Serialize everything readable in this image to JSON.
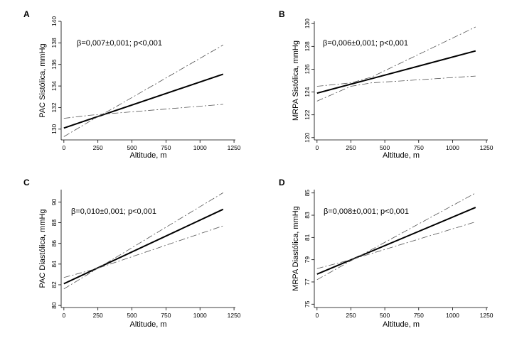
{
  "chart_data": [
    {
      "type": "line",
      "panel": "A",
      "annotation": "β=0,007±0,001; p<0,001",
      "xlabel": "Altitude, m",
      "ylabel": "PAC Sistólica, mmHg",
      "xlim": [
        -20,
        1260
      ],
      "ylim": [
        129,
        140
      ],
      "xticks": [
        0,
        250,
        500,
        750,
        1000,
        1250
      ],
      "yticks": [
        130,
        132,
        134,
        136,
        138,
        140
      ],
      "series": [
        {
          "role": "fit",
          "x": [
            0,
            1170
          ],
          "y": [
            130.1,
            135.1
          ]
        },
        {
          "role": "ci-upper",
          "x": [
            0,
            200,
            400,
            1170
          ],
          "y": [
            129.3,
            130.8,
            132.2,
            137.8
          ]
        },
        {
          "role": "ci-lower",
          "x": [
            0,
            200,
            400,
            1170
          ],
          "y": [
            131.0,
            131.3,
            131.5,
            132.3
          ]
        }
      ]
    },
    {
      "type": "line",
      "panel": "B",
      "annotation": "β=0,006±0,001; p<0,001",
      "xlabel": "Altitude, m",
      "ylabel": "MRPA Sistólica, mmHg",
      "xlim": [
        -20,
        1260
      ],
      "ylim": [
        119.8,
        130.2
      ],
      "xticks": [
        0,
        250,
        500,
        750,
        1000,
        1250
      ],
      "yticks": [
        120,
        122,
        124,
        126,
        128,
        130
      ],
      "series": [
        {
          "role": "fit",
          "x": [
            0,
            1170
          ],
          "y": [
            123.9,
            127.6
          ]
        },
        {
          "role": "ci-upper",
          "x": [
            0,
            250,
            400,
            1170
          ],
          "y": [
            124.5,
            124.8,
            125.3,
            129.7
          ]
        },
        {
          "role": "ci-lower",
          "x": [
            0,
            250,
            400,
            1170
          ],
          "y": [
            123.2,
            124.5,
            124.8,
            125.4
          ]
        }
      ]
    },
    {
      "type": "line",
      "panel": "C",
      "annotation": "β=0,010±0,001; p<0,001",
      "xlabel": "Altitude, m",
      "ylabel": "PAC Diastólica, mmHg",
      "xlim": [
        -20,
        1260
      ],
      "ylim": [
        79.8,
        91.2
      ],
      "xticks": [
        0,
        250,
        500,
        750,
        1000,
        1250
      ],
      "yticks": [
        80,
        82,
        84,
        86,
        88,
        90
      ],
      "series": [
        {
          "role": "fit",
          "x": [
            0,
            1170
          ],
          "y": [
            82.1,
            89.3
          ]
        },
        {
          "role": "ci-upper",
          "x": [
            0,
            250,
            1170
          ],
          "y": [
            81.6,
            83.6,
            90.9
          ]
        },
        {
          "role": "ci-lower",
          "x": [
            0,
            250,
            1170
          ],
          "y": [
            82.7,
            83.6,
            87.7
          ]
        }
      ]
    },
    {
      "type": "line",
      "panel": "D",
      "annotation": "β=0,008±0,001; p<0,001",
      "xlabel": "Altitude, m",
      "ylabel": "MRPA Diastólica, mmHg",
      "xlim": [
        -20,
        1260
      ],
      "ylim": [
        74.7,
        85.3
      ],
      "xticks": [
        0,
        250,
        500,
        750,
        1000,
        1250
      ],
      "yticks": [
        75,
        77,
        79,
        81,
        83,
        85
      ],
      "series": [
        {
          "role": "fit",
          "x": [
            0,
            1170
          ],
          "y": [
            77.7,
            83.7
          ]
        },
        {
          "role": "ci-upper",
          "x": [
            0,
            250,
            1170
          ],
          "y": [
            77.2,
            78.9,
            85.0
          ]
        },
        {
          "role": "ci-lower",
          "x": [
            0,
            250,
            1170
          ],
          "y": [
            78.2,
            79.0,
            82.4
          ]
        }
      ]
    }
  ]
}
